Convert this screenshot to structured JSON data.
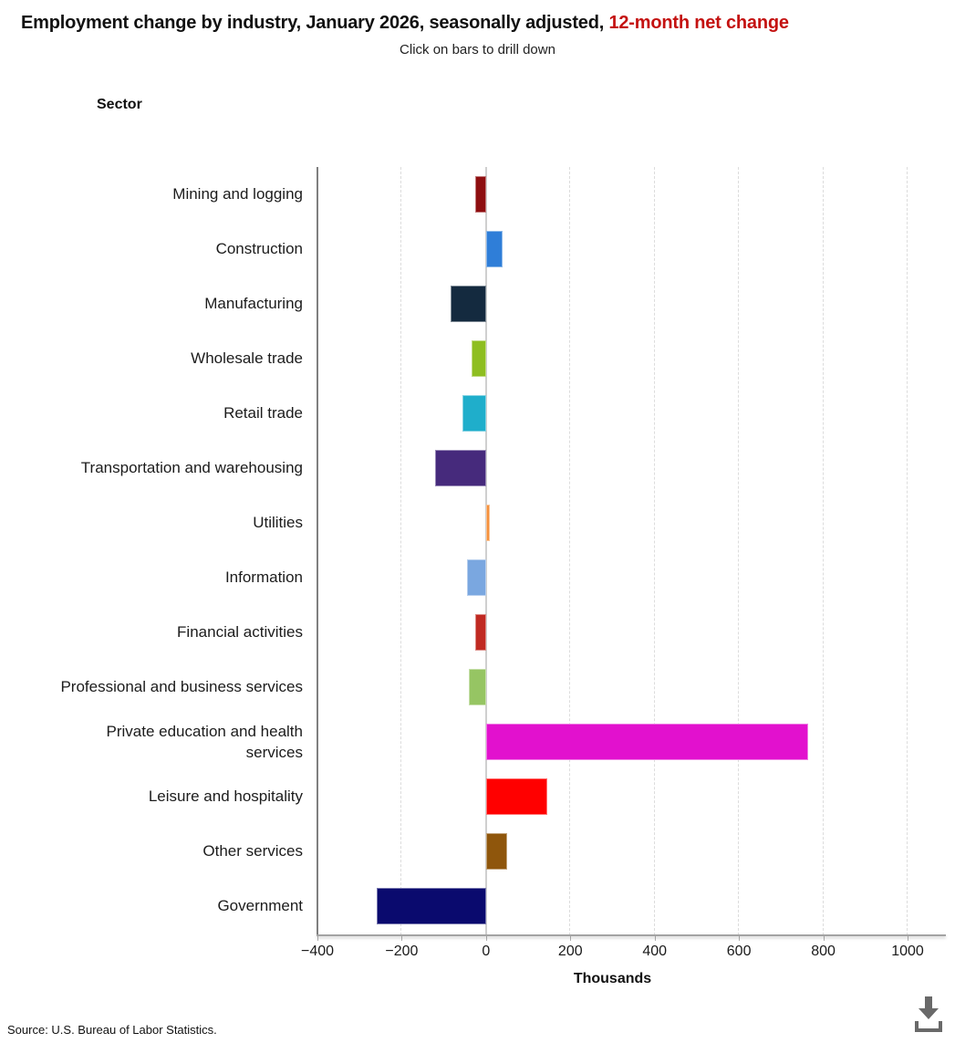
{
  "header": {
    "title_black": "Employment change by industry, January 2026, seasonally adjusted,",
    "title_red": "12-month net change",
    "title_red_color": "#c41211",
    "subtitle": "Click on bars to drill down"
  },
  "axis_header": "Sector",
  "chart_data": {
    "type": "bar",
    "orientation": "horizontal",
    "title": "Employment change by industry, January 2026, seasonally adjusted, 12-month net change",
    "xlabel": "Thousands",
    "ylabel": "Sector",
    "xlim": [
      -400,
      1000
    ],
    "x_ticks": [
      -400,
      -200,
      0,
      200,
      400,
      600,
      800,
      1000
    ],
    "grid": "vertical dashed gridlines every 200; solid light zero line; solid dark left edge",
    "legend": "none",
    "categories": [
      "Mining and logging",
      "Construction",
      "Manufacturing",
      "Wholesale trade",
      "Retail trade",
      "Transportation and warehousing",
      "Utilities",
      "Information",
      "Financial activities",
      "Professional and business services",
      "Private education and health services",
      "Leisure and hospitality",
      "Other services",
      "Government"
    ],
    "values": [
      -25,
      40,
      -85,
      -35,
      -55,
      -120,
      10,
      -45,
      -25,
      -40,
      765,
      145,
      50,
      -260
    ],
    "colors": [
      "#8e0e10",
      "#2f7ed8",
      "#142a3f",
      "#8ebe21",
      "#1faecb",
      "#462a7c",
      "#f5913c",
      "#7aa7e0",
      "#c02a22",
      "#96c563",
      "#e211ce",
      "#ff0000",
      "#8f560c",
      "#0a0a6e"
    ]
  },
  "footer": {
    "source": "Source: U.S. Bureau of Labor Statistics.",
    "download_label": "Download"
  }
}
